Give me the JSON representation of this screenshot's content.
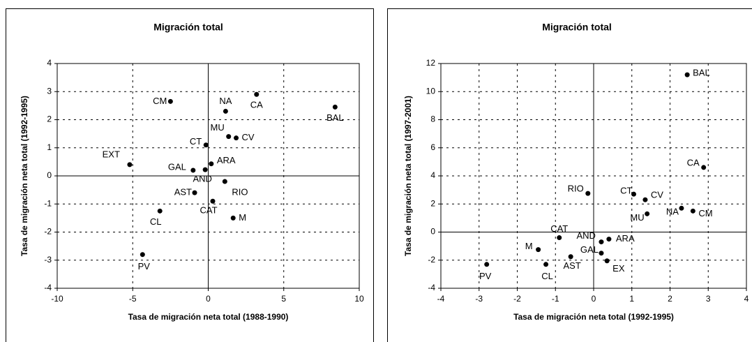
{
  "chart_data": [
    {
      "type": "scatter",
      "title": "Migración total",
      "x_label": "Tasa de migración neta total (1988-1990)",
      "y_label": "Tasa de migración neta total (1992-1995)",
      "labels": [
        "CM",
        "NA",
        "CA",
        "BAL",
        "MU",
        "CV",
        "CT",
        "EXT",
        "GAL",
        "ARA",
        "AND",
        "RIO",
        "AST",
        "CAT",
        "M",
        "CL",
        "PV"
      ],
      "x": [
        -2.5,
        1.15,
        3.2,
        8.4,
        1.35,
        1.85,
        -0.15,
        -5.2,
        -1.0,
        0.2,
        -0.2,
        1.1,
        -0.9,
        0.3,
        1.65,
        -3.2,
        -4.35
      ],
      "values": [
        2.65,
        2.3,
        2.9,
        2.45,
        1.4,
        1.35,
        1.1,
        0.4,
        0.2,
        0.43,
        0.22,
        -0.2,
        -0.6,
        -0.9,
        -1.5,
        -1.25,
        -2.8
      ],
      "color": "#000000",
      "xlim": [
        -10,
        10
      ],
      "xticks": [
        -10,
        -5,
        0,
        5,
        10
      ],
      "ylim": [
        -4,
        4
      ],
      "yticks": [
        -4,
        -3,
        -2,
        -1,
        0,
        1,
        2,
        3,
        4
      ],
      "grid": true
    },
    {
      "type": "scatter",
      "title": "Migración total",
      "x_label": "Tasa de migración neta total (1992-1995)",
      "y_label": "Tasa de migración neta total (1997-2001)",
      "labels": [
        "BAL",
        "CA",
        "RIO",
        "CT",
        "CV",
        "NA",
        "CM",
        "MU",
        "CAT",
        "AND",
        "ARA",
        "M",
        "GAL",
        "AST",
        "EX",
        "CL",
        "PV"
      ],
      "x": [
        2.45,
        2.88,
        -0.15,
        1.05,
        1.35,
        2.3,
        2.6,
        1.4,
        -0.9,
        0.2,
        0.4,
        -1.45,
        0.2,
        -0.6,
        0.35,
        -1.25,
        -2.8
      ],
      "values": [
        11.2,
        4.6,
        2.75,
        2.7,
        2.3,
        1.7,
        1.5,
        1.3,
        -0.4,
        -0.7,
        -0.5,
        -1.25,
        -1.5,
        -1.75,
        -2.05,
        -2.3,
        -2.3
      ],
      "color": "#000000",
      "xlim": [
        -4,
        4
      ],
      "xticks": [
        -4,
        -3,
        -2,
        -1,
        0,
        1,
        2,
        3,
        4
      ],
      "ylim": [
        -4,
        12
      ],
      "yticks": [
        -4,
        -2,
        0,
        2,
        4,
        6,
        8,
        10,
        12
      ],
      "grid": true
    }
  ]
}
